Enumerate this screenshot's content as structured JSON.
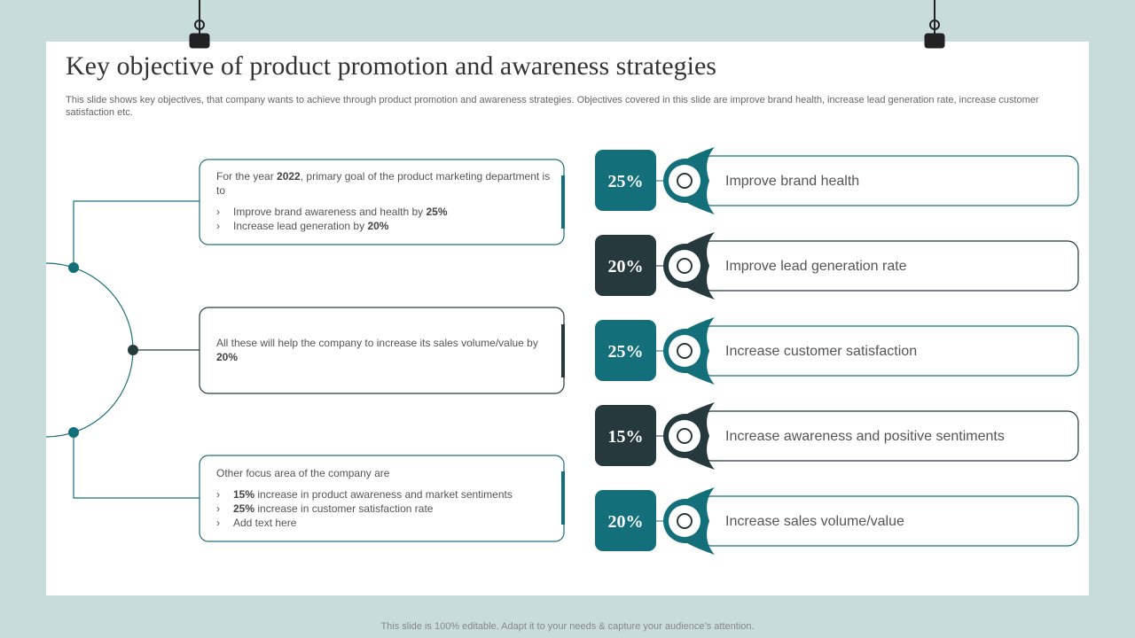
{
  "header": {
    "title": "Key objective of product promotion and awareness strategies",
    "subtitle": "This slide shows key objectives, that company wants to achieve through product promotion and awareness strategies. Objectives covered in this slide are improve brand health, increase lead generation rate, increase customer satisfaction etc."
  },
  "left_boxes": [
    {
      "intro": [
        "For the year ",
        "2022",
        ", primary goal of the product marketing department is to"
      ],
      "bullets": [
        [
          "Improve brand awareness and health by ",
          "25%"
        ],
        [
          "Increase lead generation by ",
          "20%"
        ]
      ]
    },
    {
      "intro": [
        "All these will help the company to increase its sales volume/value by ",
        "20%"
      ],
      "bullets": []
    },
    {
      "intro": [
        "Other focus area of the company are"
      ],
      "bullets": [
        [
          "15%",
          " increase in product awareness and market sentiments"
        ],
        [
          "25%",
          " increase in customer satisfaction rate"
        ],
        [
          "Add text here"
        ]
      ]
    }
  ],
  "objectives": [
    {
      "percent": "25%",
      "label": "Improve brand health"
    },
    {
      "percent": "20%",
      "label": "Improve lead generation rate"
    },
    {
      "percent": "25%",
      "label": "Increase customer satisfaction"
    },
    {
      "percent": "15%",
      "label": "Increase awareness and positive sentiments"
    },
    {
      "percent": "20%",
      "label": "Increase sales volume/value"
    }
  ],
  "footer": "This slide is 100% editable. Adapt it to your needs & capture your audience’s attention."
}
